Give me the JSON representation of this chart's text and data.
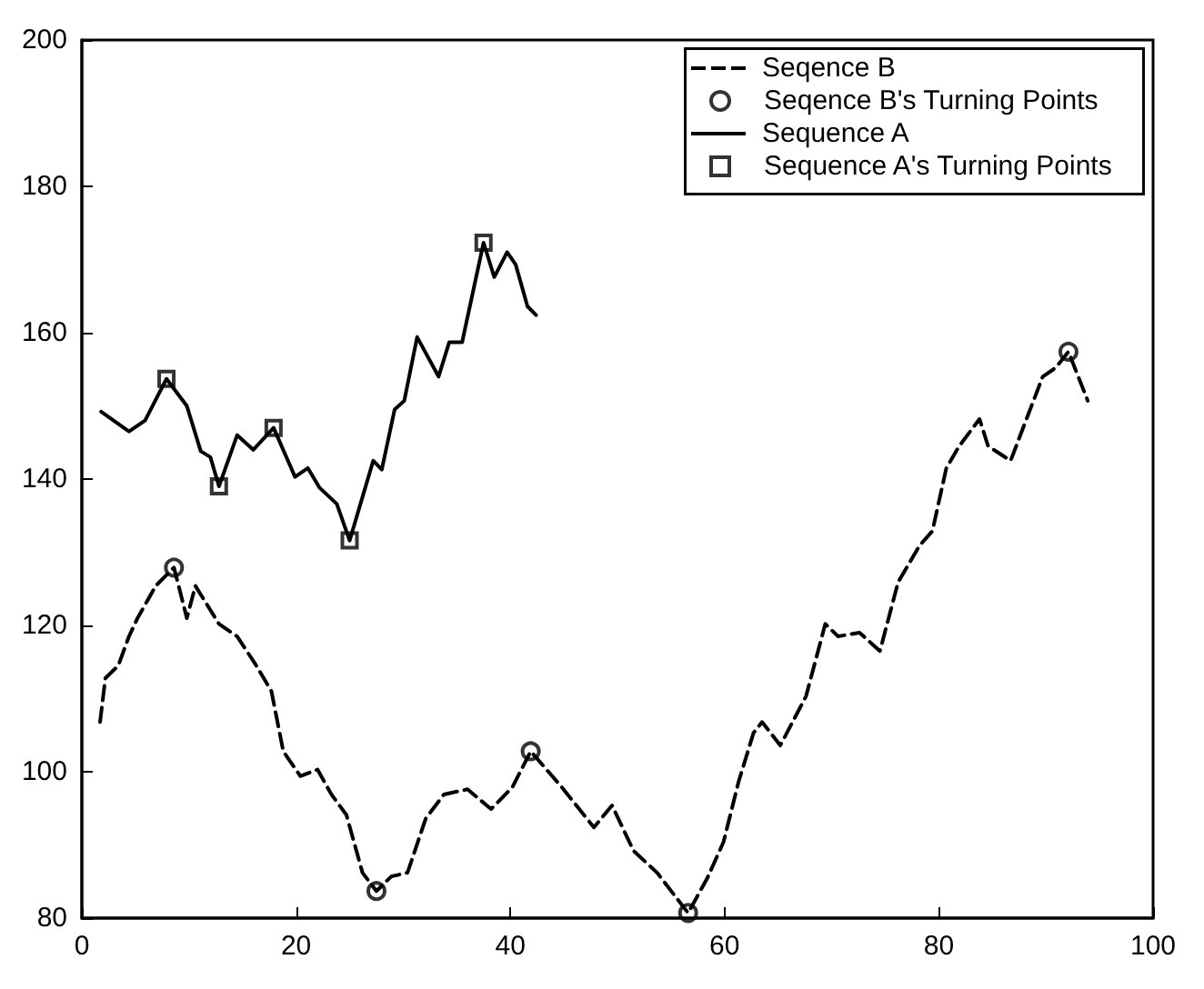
{
  "chart_data": {
    "type": "line",
    "xlim": [
      0,
      100
    ],
    "xticks": [
      0,
      20,
      40,
      60,
      80,
      100
    ],
    "ylim": [
      80,
      200
    ],
    "yticks": [
      80,
      100,
      120,
      140,
      160,
      180,
      200
    ],
    "grid": false,
    "legend": "top right",
    "series": [
      {
        "name": "Seqence B",
        "line_style": "dashed",
        "marker": "none",
        "color": "#000000",
        "x": [
          1.7,
          2.2,
          3.4,
          4.4,
          5.2,
          6.9,
          8.6,
          9.8,
          10.6,
          12.8,
          14.5,
          16.2,
          17.7,
          18.8,
          20.4,
          22,
          23.3,
          24.7,
          26.2,
          27.5,
          28.9,
          30.4,
          32.1,
          33.8,
          36,
          38.2,
          40.2,
          41.9,
          44.8,
          47.8,
          49.5,
          51.5,
          53.7,
          56.6,
          58.4,
          59.9,
          61.3,
          62.7,
          63.5,
          65.2,
          67.6,
          69.4,
          70.6,
          72.6,
          74.5,
          76.2,
          78.2,
          79.4,
          80.7,
          81.9,
          83.8,
          84.6,
          86.7,
          88,
          89.7,
          90.9,
          92.1,
          93.9
        ],
        "values": [
          106.8,
          112.8,
          114.5,
          118.5,
          121,
          125.4,
          127.9,
          121,
          125.4,
          120.2,
          118.5,
          114.7,
          111,
          102.8,
          99.4,
          100.3,
          96.9,
          94.1,
          86.2,
          83.7,
          85.7,
          86.2,
          93.6,
          96.9,
          97.6,
          94.9,
          97.9,
          102.8,
          97.9,
          92.4,
          95.4,
          89.2,
          86.2,
          80.7,
          85.5,
          90.4,
          98.6,
          105.3,
          106.8,
          103.6,
          110.3,
          120.2,
          118.5,
          119,
          116.5,
          125.9,
          130.9,
          132.9,
          141.5,
          144.5,
          148.2,
          144.5,
          142.5,
          147.5,
          154,
          155.2,
          157.4,
          150.7
        ]
      },
      {
        "name": "Seqence B's Turning Points",
        "type": "scatter",
        "marker": "circle",
        "color": "#000000",
        "x": [
          8.6,
          27.5,
          41.9,
          56.6,
          92.1
        ],
        "values": [
          127.9,
          83.7,
          102.8,
          80.7,
          157.4
        ]
      },
      {
        "name": "Sequence A",
        "line_style": "solid",
        "marker": "none",
        "color": "#000000",
        "x": [
          1.8,
          4.4,
          5.9,
          7.9,
          9.8,
          11.1,
          12,
          12.8,
          14.5,
          16,
          17.9,
          19.9,
          21.1,
          22.2,
          23.8,
          25,
          27.2,
          28,
          29.2,
          30.1,
          31.3,
          33.3,
          34.3,
          35.5,
          37.5,
          38.5,
          39.7,
          40.5,
          41.6,
          42.4
        ],
        "values": [
          149.2,
          146.5,
          148,
          153.7,
          150,
          143.8,
          143,
          139,
          146,
          144,
          147,
          140.3,
          141.5,
          138.8,
          136.6,
          131.6,
          142.5,
          141.3,
          149.5,
          150.7,
          159.4,
          154,
          158.7,
          158.7,
          172.3,
          167.6,
          171,
          169.3,
          163.6,
          162.4
        ]
      },
      {
        "name": "Sequence A's Turning Points",
        "type": "scatter",
        "marker": "square",
        "color": "#000000",
        "x": [
          7.9,
          12.8,
          17.9,
          25,
          37.5
        ],
        "values": [
          153.7,
          139,
          147,
          131.6,
          172.3
        ]
      }
    ]
  }
}
